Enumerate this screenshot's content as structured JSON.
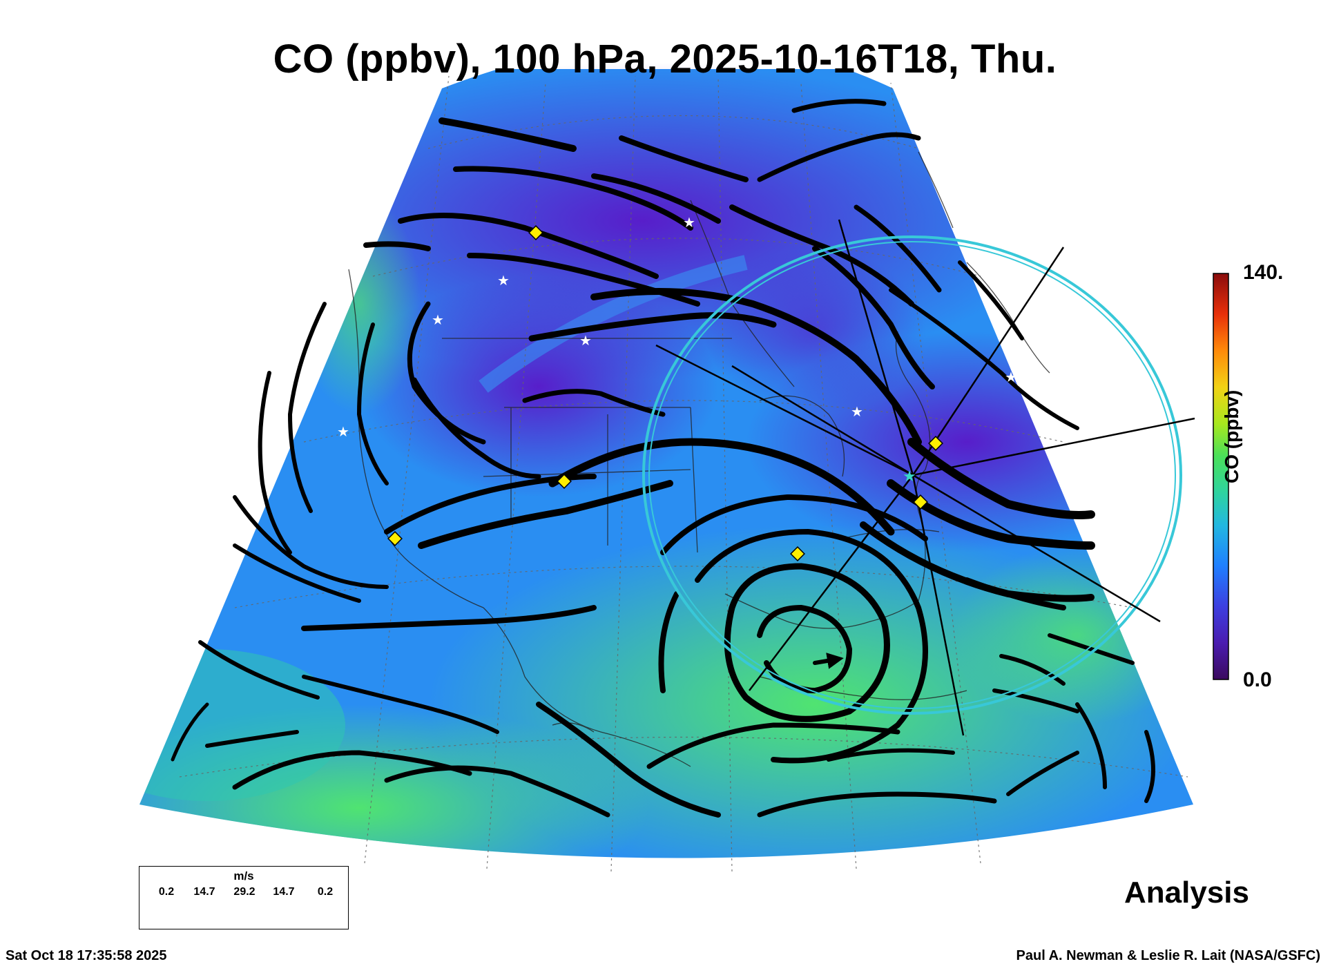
{
  "title": "CO (ppbv), 100 hPa, 2025-10-16T18, Thu.",
  "colorbar": {
    "max_label": "140.",
    "min_label": "0.0",
    "label": "CO (ppbv)",
    "colors": [
      "#3b0a5e",
      "#4a1cb0",
      "#3d3fe0",
      "#1f7fff",
      "#22b8e0",
      "#2ed3a0",
      "#4ae05a",
      "#a8e81e",
      "#f2d215",
      "#ff8a0a",
      "#e8300a",
      "#8a0c0c"
    ]
  },
  "wind_legend": {
    "unit": "m/s",
    "values": [
      "0.2",
      "14.7",
      "29.2",
      "14.7",
      "0.2"
    ]
  },
  "run_type": "Analysis",
  "timestamp": "Sat Oct 18 17:35:58 2025",
  "credit": "Paul A. Newman & Leslie R. Lait (NASA/GSFC)",
  "colors": {
    "low_co": "#4a22d6",
    "mid_co": "#2a8ef2",
    "high_co": "#3fe07a",
    "streamline": "#0a0a0a",
    "ring": "#38c8d8",
    "marker_yellow": "#ffee00"
  }
}
